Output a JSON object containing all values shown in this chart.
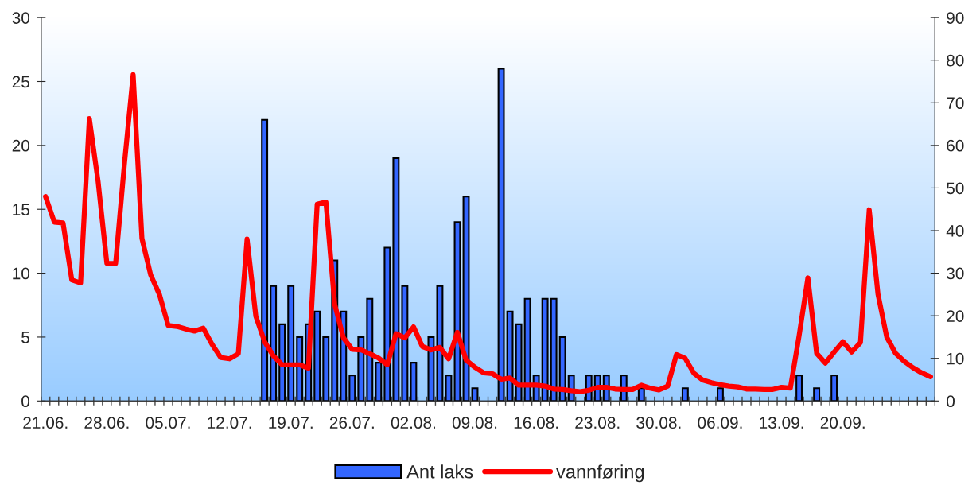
{
  "chart_data": {
    "type": "bar",
    "categories": [
      "21.06.",
      null,
      null,
      null,
      null,
      null,
      null,
      "28.06.",
      null,
      null,
      null,
      null,
      null,
      null,
      "05.07.",
      null,
      null,
      null,
      null,
      null,
      null,
      "12.07.",
      null,
      null,
      null,
      null,
      null,
      null,
      "19.07.",
      null,
      null,
      null,
      null,
      null,
      null,
      "26.07.",
      null,
      null,
      null,
      null,
      null,
      null,
      "02.08.",
      null,
      null,
      null,
      null,
      null,
      null,
      "09.08.",
      null,
      null,
      null,
      null,
      null,
      null,
      "16.08.",
      null,
      null,
      null,
      null,
      null,
      null,
      "23.08.",
      null,
      null,
      null,
      null,
      null,
      null,
      "30.08.",
      null,
      null,
      null,
      null,
      null,
      null,
      "06.09.",
      null,
      null,
      null,
      null,
      null,
      null,
      "13.09.",
      null,
      null,
      null,
      null,
      null,
      null,
      "20.09.",
      null,
      null,
      null,
      null,
      null,
      null,
      null,
      null,
      null,
      null
    ],
    "series": [
      {
        "name": "Ant laks",
        "color": "#3366ff",
        "values": [
          null,
          null,
          null,
          null,
          null,
          null,
          null,
          null,
          null,
          null,
          null,
          null,
          null,
          null,
          null,
          null,
          null,
          null,
          null,
          null,
          null,
          null,
          null,
          null,
          null,
          22,
          9,
          6,
          9,
          5,
          6,
          7,
          5,
          11,
          7,
          2,
          5,
          8,
          3,
          12,
          19,
          9,
          3,
          null,
          5,
          9,
          2,
          14,
          16,
          1,
          null,
          null,
          26,
          7,
          6,
          8,
          2,
          8,
          8,
          5,
          2,
          null,
          2,
          2,
          2,
          null,
          2,
          null,
          1,
          null,
          null,
          null,
          null,
          1,
          null,
          null,
          null,
          1,
          null,
          null,
          null,
          null,
          null,
          null,
          null,
          null,
          2,
          null,
          1,
          null,
          2,
          null,
          null,
          null,
          null,
          null,
          null,
          null,
          null,
          null,
          null,
          null
        ]
      },
      {
        "name": "vannføring",
        "type": "line",
        "axis": "y2",
        "color": "#ff0000",
        "values": [
          48,
          42,
          41.8,
          28.4,
          27.7,
          66.3,
          51.5,
          32.3,
          32.3,
          55.6,
          76.6,
          38.2,
          29.6,
          25,
          17.7,
          17.5,
          16.9,
          16.4,
          17.1,
          13.3,
          10.2,
          9.9,
          11.1,
          38,
          19.9,
          13.9,
          10.6,
          8.5,
          8.5,
          8.5,
          7.7,
          46.2,
          46.7,
          22.7,
          14.8,
          12.1,
          12,
          11.1,
          10.1,
          8.5,
          15.8,
          14.8,
          17.4,
          12.8,
          12,
          12.6,
          9.9,
          16.1,
          9.6,
          7.9,
          6.6,
          6.4,
          5.1,
          5.4,
          3.7,
          3.7,
          3.7,
          3.5,
          2.8,
          2.7,
          2.4,
          2.2,
          2.5,
          3.2,
          3.2,
          2.8,
          2.7,
          2.7,
          3.7,
          3,
          2.6,
          3.5,
          10.9,
          10,
          6.5,
          4.9,
          4.3,
          3.8,
          3.5,
          3.3,
          2.8,
          2.8,
          2.7,
          2.7,
          3.2,
          3,
          15.3,
          28.9,
          11.2,
          8.9,
          11.5,
          13.9,
          11.5,
          13.7,
          44.9,
          25.1,
          15,
          11.2,
          9.3,
          7.8,
          6.6,
          5.7
        ]
      }
    ],
    "ylim": [
      0,
      30
    ],
    "yticks": [
      0,
      5,
      10,
      15,
      20,
      25,
      30
    ],
    "y2lim": [
      0,
      90
    ],
    "y2ticks": [
      0,
      10,
      20,
      30,
      40,
      50,
      60,
      70,
      80,
      90
    ],
    "legend": "bottom",
    "grid": false
  }
}
